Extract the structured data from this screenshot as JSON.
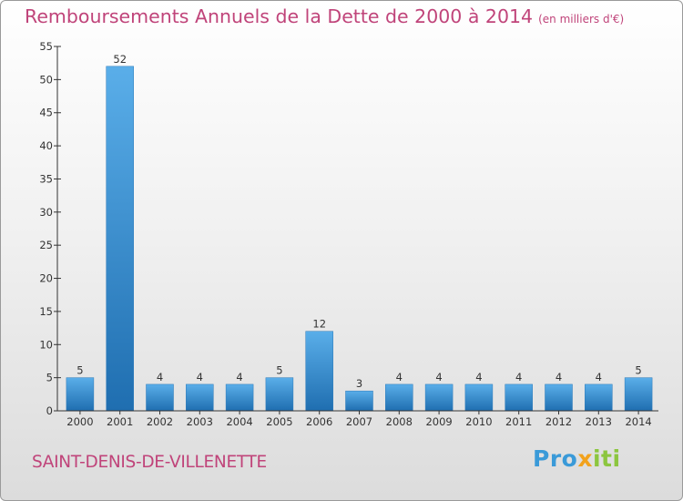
{
  "header": {
    "title": "Remboursements Annuels de la Dette de 2000 à 2014",
    "unit": "(en milliers d'€)"
  },
  "footer": {
    "commune": "SAINT-DENIS-DE-VILLENETTE"
  },
  "logo": {
    "part1": "Pro",
    "part2": "x",
    "part3": "iti"
  },
  "colors": {
    "title": "#c0447a",
    "bar_top": "#5aaee9",
    "bar_bottom": "#1f6eb0"
  },
  "chart_data": {
    "type": "bar",
    "title": "Remboursements Annuels de la Dette de 2000 à 2014",
    "subtitle": "(en milliers d'€)",
    "xlabel": "",
    "ylabel": "",
    "categories": [
      "2000",
      "2001",
      "2002",
      "2003",
      "2004",
      "2005",
      "2006",
      "2007",
      "2008",
      "2009",
      "2010",
      "2011",
      "2012",
      "2013",
      "2014"
    ],
    "values": [
      5,
      52,
      4,
      4,
      4,
      5,
      12,
      3,
      4,
      4,
      4,
      4,
      4,
      4,
      5
    ],
    "ylim": [
      0,
      55
    ],
    "yticks": [
      0,
      5,
      10,
      15,
      20,
      25,
      30,
      35,
      40,
      45,
      50,
      55
    ],
    "grid": false,
    "legend": "none"
  }
}
